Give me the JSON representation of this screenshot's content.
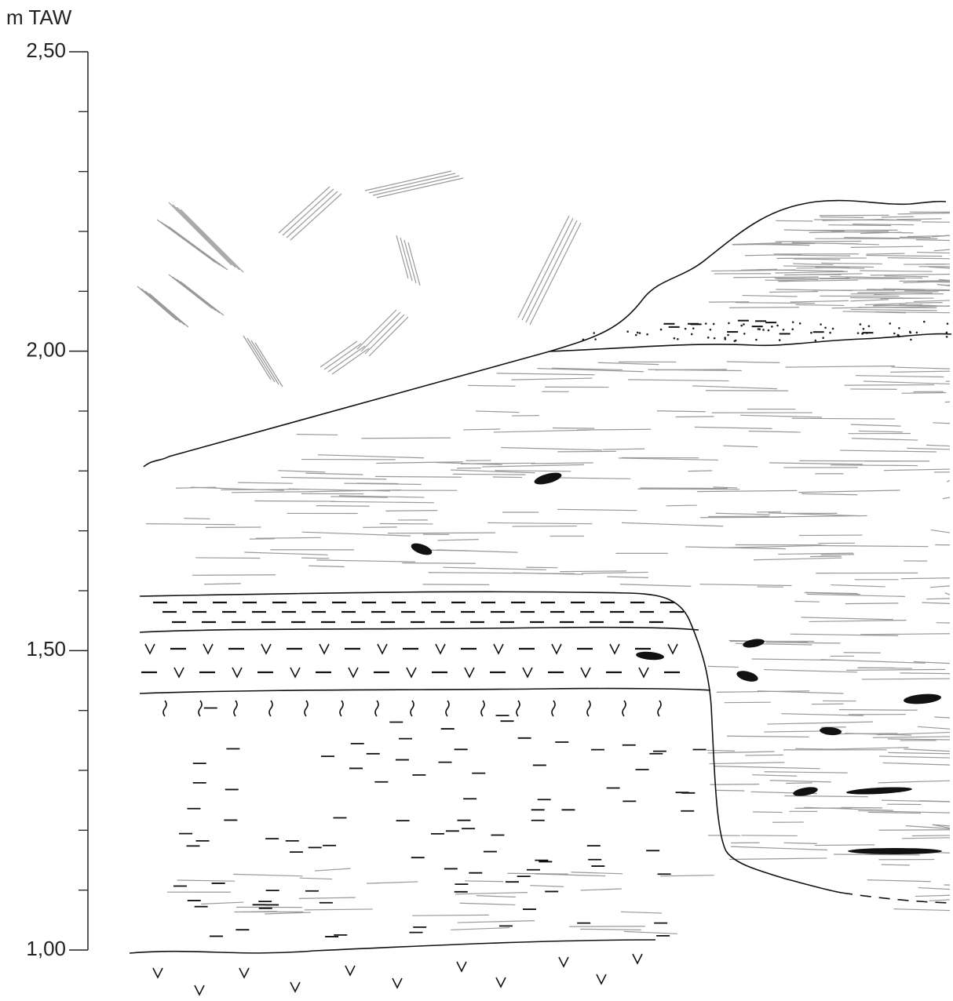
{
  "axis": {
    "label": "m TAW",
    "ylim": [
      1.0,
      2.5
    ],
    "ticks": [
      {
        "value": 2.5,
        "label": "2,50"
      },
      {
        "value": 2.0,
        "label": "2,00"
      },
      {
        "value": 1.5,
        "label": "1,50"
      },
      {
        "value": 1.0,
        "label": "1,00"
      }
    ],
    "minor_ticks": [
      1.1,
      1.2,
      1.3,
      1.4,
      1.6,
      1.7,
      1.8,
      1.9,
      2.1,
      2.2,
      2.3,
      2.4
    ]
  }
}
